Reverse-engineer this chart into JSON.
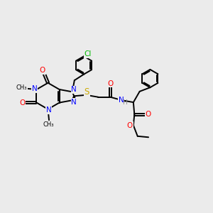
{
  "bg_color": "#ebebeb",
  "bond_color": "#000000",
  "bond_width": 1.4,
  "atom_colors": {
    "N": "#0000ff",
    "O": "#ff0000",
    "S": "#ccaa00",
    "Cl": "#00bb00",
    "C": "#000000",
    "H": "#888888"
  },
  "font_size": 7.5
}
